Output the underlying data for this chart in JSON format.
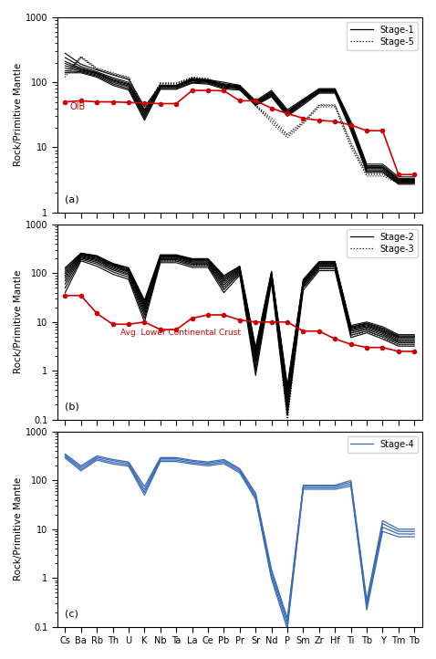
{
  "elements": [
    "Cs",
    "Ba",
    "Rb",
    "Th",
    "U",
    "K",
    "Nb",
    "Ta",
    "La",
    "Ce",
    "Pb",
    "Pr",
    "Sr",
    "Nd",
    "P",
    "Sm",
    "Zr",
    "Hf",
    "Ti",
    "Tb",
    "Y",
    "Tm",
    "Tb"
  ],
  "panel_a_ylim": [
    1,
    1000
  ],
  "panel_b_ylim": [
    0.1,
    1000
  ],
  "panel_c_ylim": [
    0.1,
    1000
  ],
  "oib_vals": [
    50,
    52,
    50,
    50,
    49,
    48,
    47,
    47,
    75,
    75,
    74,
    52,
    52,
    40,
    33,
    28,
    26,
    25,
    22,
    18,
    18,
    3.8,
    3.8
  ],
  "stage1_lines": [
    [
      280,
      190,
      155,
      130,
      110,
      42,
      90,
      90,
      115,
      110,
      100,
      90,
      52,
      75,
      38,
      55,
      80,
      80,
      25,
      5.5,
      5.5,
      3.5,
      3.5
    ],
    [
      240,
      175,
      145,
      118,
      100,
      38,
      88,
      88,
      112,
      108,
      95,
      88,
      50,
      72,
      36,
      53,
      78,
      78,
      23,
      5.2,
      5.2,
      3.3,
      3.3
    ],
    [
      210,
      165,
      140,
      112,
      95,
      36,
      87,
      87,
      110,
      106,
      92,
      86,
      49,
      70,
      35,
      52,
      77,
      77,
      22,
      5.0,
      5.0,
      3.2,
      3.2
    ],
    [
      195,
      160,
      138,
      108,
      92,
      34,
      86,
      86,
      108,
      104,
      90,
      85,
      48,
      68,
      34,
      51,
      76,
      76,
      22,
      4.9,
      4.9,
      3.1,
      3.1
    ],
    [
      180,
      155,
      135,
      105,
      88,
      32,
      85,
      85,
      106,
      102,
      88,
      83,
      47,
      66,
      33,
      50,
      74,
      74,
      21,
      4.7,
      4.7,
      3.0,
      3.0
    ],
    [
      165,
      150,
      130,
      100,
      85,
      30,
      83,
      83,
      104,
      100,
      85,
      81,
      46,
      64,
      32,
      49,
      72,
      72,
      20,
      4.5,
      4.5,
      2.9,
      2.9
    ],
    [
      150,
      145,
      125,
      95,
      80,
      28,
      80,
      80,
      100,
      97,
      82,
      79,
      45,
      62,
      31,
      47,
      70,
      70,
      19,
      4.3,
      4.3,
      2.8,
      2.8
    ],
    [
      140,
      140,
      120,
      90,
      76,
      26,
      78,
      78,
      97,
      94,
      79,
      76,
      44,
      60,
      30,
      45,
      68,
      68,
      18,
      4.1,
      4.1,
      2.7,
      2.7
    ]
  ],
  "stage5_lines": [
    [
      140,
      250,
      165,
      140,
      120,
      38,
      98,
      98,
      120,
      115,
      85,
      90,
      45,
      28,
      16,
      25,
      45,
      45,
      12,
      4.0,
      4.0,
      3.0,
      3.0
    ],
    [
      130,
      245,
      162,
      137,
      118,
      36,
      96,
      96,
      118,
      112,
      83,
      88,
      44,
      26,
      15,
      24,
      44,
      44,
      11,
      3.8,
      3.8,
      2.9,
      2.9
    ],
    [
      120,
      238,
      158,
      133,
      115,
      34,
      94,
      94,
      115,
      108,
      80,
      85,
      43,
      24,
      14,
      23,
      42,
      42,
      10,
      3.6,
      3.6,
      2.8,
      2.8
    ]
  ],
  "stage2_lines": [
    [
      130,
      260,
      230,
      160,
      130,
      28,
      240,
      240,
      200,
      200,
      90,
      140,
      3,
      110,
      0.5,
      75,
      175,
      175,
      8.5,
      10.0,
      8.0,
      5.5,
      5.5
    ],
    [
      120,
      255,
      225,
      155,
      125,
      26,
      235,
      235,
      195,
      195,
      85,
      137,
      2.8,
      107,
      0.45,
      72,
      170,
      170,
      8.0,
      9.5,
      7.5,
      5.2,
      5.2
    ],
    [
      110,
      250,
      218,
      150,
      120,
      24,
      230,
      230,
      190,
      190,
      80,
      133,
      2.5,
      103,
      0.42,
      70,
      165,
      165,
      7.8,
      9.2,
      7.2,
      5.0,
      5.0
    ],
    [
      100,
      243,
      210,
      145,
      115,
      22,
      225,
      225,
      185,
      185,
      75,
      128,
      2.2,
      98,
      0.38,
      67,
      160,
      160,
      7.5,
      8.8,
      6.8,
      4.8,
      4.8
    ],
    [
      90,
      235,
      200,
      140,
      110,
      20,
      218,
      218,
      178,
      178,
      70,
      123,
      2.0,
      94,
      0.35,
      64,
      155,
      155,
      7.2,
      8.4,
      6.5,
      4.6,
      4.6
    ],
    [
      80,
      225,
      190,
      133,
      105,
      18,
      210,
      210,
      170,
      170,
      64,
      117,
      1.7,
      89,
      0.3,
      61,
      148,
      148,
      6.8,
      8.0,
      6.2,
      4.3,
      4.3
    ],
    [
      70,
      215,
      180,
      125,
      98,
      16,
      200,
      200,
      162,
      162,
      58,
      112,
      1.5,
      84,
      0.25,
      58,
      140,
      140,
      6.4,
      7.5,
      5.8,
      4.0,
      4.0
    ],
    [
      60,
      205,
      168,
      117,
      91,
      14,
      190,
      190,
      153,
      153,
      52,
      106,
      1.2,
      78,
      0.2,
      54,
      132,
      132,
      5.9,
      7.0,
      5.4,
      3.8,
      3.8
    ],
    [
      50,
      193,
      155,
      107,
      83,
      12,
      178,
      178,
      143,
      143,
      46,
      99,
      1.0,
      72,
      0.16,
      50,
      123,
      123,
      5.4,
      6.5,
      5.0,
      3.5,
      3.5
    ],
    [
      40,
      180,
      140,
      96,
      75,
      10,
      165,
      165,
      132,
      132,
      40,
      91,
      0.8,
      65,
      0.12,
      45,
      113,
      113,
      4.8,
      6.0,
      4.5,
      3.2,
      3.2
    ]
  ],
  "stage3_lines": [
    [
      100,
      240,
      200,
      145,
      118,
      22,
      215,
      215,
      178,
      178,
      68,
      120,
      2.5,
      95,
      0.15,
      65,
      152,
      152,
      6.8,
      8.0,
      6.0,
      4.2,
      4.2
    ],
    [
      85,
      225,
      185,
      132,
      108,
      19,
      198,
      198,
      163,
      163,
      58,
      110,
      2.0,
      86,
      0.12,
      59,
      138,
      138,
      6.0,
      7.2,
      5.4,
      3.8,
      3.8
    ],
    [
      70,
      208,
      168,
      118,
      97,
      16,
      180,
      180,
      148,
      148,
      48,
      99,
      1.6,
      76,
      0.09,
      52,
      124,
      124,
      5.2,
      6.4,
      4.8,
      3.4,
      3.4
    ]
  ],
  "lcc_vals": [
    35,
    35,
    15,
    9,
    9,
    10,
    7,
    7,
    12,
    14,
    14,
    11,
    10,
    10,
    10,
    6.5,
    6.5,
    4.5,
    3.5,
    3.0,
    3.0,
    2.5,
    2.5
  ],
  "stage4_lines": [
    [
      350,
      200,
      320,
      270,
      240,
      75,
      295,
      295,
      260,
      240,
      270,
      175,
      55,
      1.5,
      0.15,
      80,
      80,
      80,
      100,
      0.35,
      15,
      10,
      10
    ],
    [
      330,
      185,
      300,
      255,
      225,
      65,
      280,
      280,
      248,
      228,
      255,
      165,
      50,
      1.3,
      0.13,
      76,
      76,
      76,
      92,
      0.3,
      13,
      9,
      9
    ],
    [
      310,
      170,
      280,
      235,
      210,
      57,
      262,
      262,
      232,
      214,
      238,
      153,
      45,
      1.1,
      0.11,
      71,
      71,
      71,
      84,
      0.26,
      11,
      8,
      8
    ],
    [
      290,
      158,
      262,
      218,
      196,
      50,
      245,
      245,
      218,
      200,
      222,
      143,
      41,
      0.95,
      0.09,
      66,
      66,
      66,
      77,
      0.22,
      9,
      7,
      7
    ]
  ],
  "stage1_color": "black",
  "stage5_color": "black",
  "stage2_color": "black",
  "stage3_color": "black",
  "stage4_color": "#3a6ab5",
  "oib_color": "#cc0000",
  "lcc_color": "#cc0000"
}
